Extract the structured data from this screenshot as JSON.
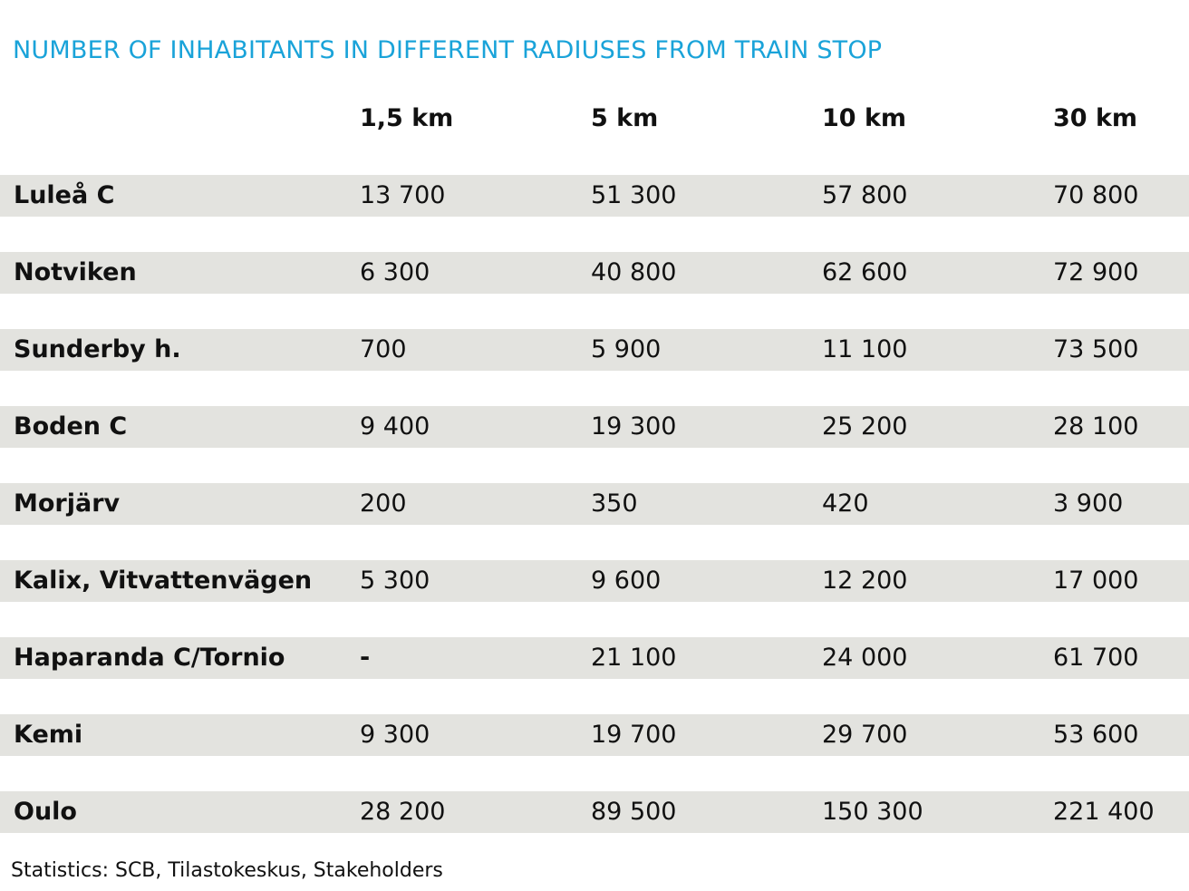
{
  "title": "NUMBER OF INHABITANTS IN DIFFERENT RADIUSES FROM TRAIN STOP",
  "accent_color": "#1aa3d9",
  "columns": [
    "1,5 km",
    "5 km",
    "10 km",
    "30 km"
  ],
  "rows": [
    {
      "name": "Luleå C",
      "values": [
        "13 700",
        "51 300",
        "57 800",
        "70 800"
      ]
    },
    {
      "name": "Notviken",
      "values": [
        "6 300",
        "40 800",
        "62 600",
        "72 900"
      ]
    },
    {
      "name": "Sunderby h.",
      "values": [
        "700",
        "5 900",
        "11 100",
        "73 500"
      ]
    },
    {
      "name": "Boden C",
      "values": [
        "9 400",
        "19 300",
        "25 200",
        "28 100"
      ]
    },
    {
      "name": "Morjärv",
      "values": [
        "200",
        "350",
        "420",
        "3 900"
      ]
    },
    {
      "name": "Kalix, Vitvattenvägen",
      "values": [
        "5 300",
        "9 600",
        "12 200",
        "17 000"
      ]
    },
    {
      "name": "Haparanda C/Tornio",
      "values": [
        "-",
        "21 100",
        "24 000",
        "61 700"
      ]
    },
    {
      "name": "Kemi",
      "values": [
        "9 300",
        "19 700",
        "29 700",
        "53 600"
      ]
    },
    {
      "name": "Oulo",
      "values": [
        "28 200",
        "89 500",
        "150 300",
        "221 400"
      ]
    }
  ],
  "source": "Statistics: SCB, Tilastokeskus, Stakeholders"
}
